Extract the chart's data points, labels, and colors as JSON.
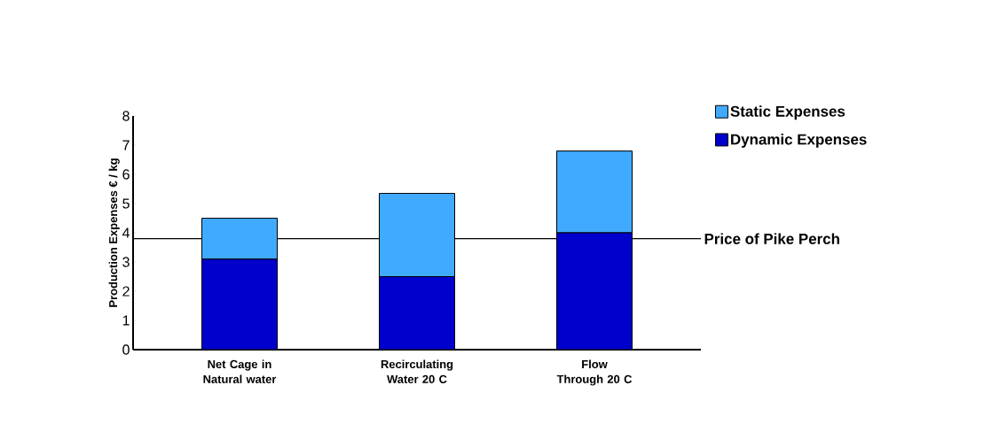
{
  "chart_data": {
    "type": "bar",
    "stacked": true,
    "ylabel": "Production Expenses € / kg",
    "categories": [
      "Net Cage in Natural water",
      "Recirculating Water 20 C",
      "Flow Through 20 C"
    ],
    "series": [
      {
        "name": "Dynamic Expenses",
        "color": "#0000cc",
        "values": [
          3.1,
          2.5,
          4.0
        ]
      },
      {
        "name": "Static Expenses",
        "color": "#40aaff",
        "values": [
          1.4,
          2.85,
          2.8
        ]
      }
    ],
    "ylim": [
      0,
      8
    ],
    "yticks": [
      0,
      1,
      2,
      3,
      4,
      5,
      6,
      7,
      8
    ],
    "grid": false,
    "legend": "right",
    "ref_lines": [
      {
        "axis": "y",
        "value": 3.8,
        "label": "Price of Pike Perch",
        "color": "#000000"
      }
    ]
  }
}
